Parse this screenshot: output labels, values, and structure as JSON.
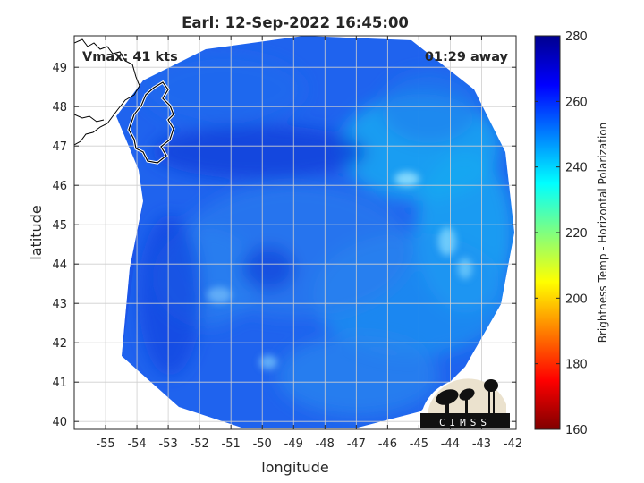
{
  "chart_data": {
    "type": "heatmap",
    "title": "Earl: 12-Sep-2022 16:45:00",
    "xlabel": "longitude",
    "ylabel": "latitude",
    "xlim": [
      -56.0,
      -41.9
    ],
    "ylim": [
      39.8,
      49.8
    ],
    "xticks": [
      -55,
      -54,
      -53,
      -52,
      -51,
      -50,
      -49,
      -48,
      -47,
      -46,
      -45,
      -44,
      -43,
      -42
    ],
    "yticks": [
      40,
      41,
      42,
      43,
      44,
      45,
      46,
      47,
      48,
      49
    ],
    "grid": true,
    "annotations": {
      "vmax": "Vmax: 41 kts",
      "time_away": "01:29 away"
    },
    "colorbar": {
      "label": "Brightness Temp - Horizontal Polarization",
      "range": [
        160,
        280
      ],
      "ticks": [
        160,
        180,
        200,
        220,
        240,
        260,
        280
      ],
      "colormap": "jet"
    },
    "swath": {
      "center": [
        -49.6,
        45.2
      ],
      "eye_center": [
        -49.9,
        44.0
      ],
      "background_value": 258
    },
    "logo_text": "CIMSS"
  }
}
